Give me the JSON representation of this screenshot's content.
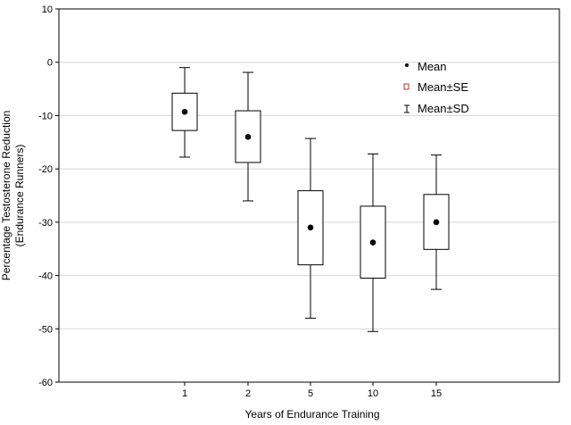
{
  "chart_data": {
    "type": "box",
    "categories": [
      "1",
      "2",
      "5",
      "10",
      "15"
    ],
    "mean": [
      -9.3,
      -14.0,
      -31.0,
      -33.8,
      -30.0
    ],
    "se_low": [
      -12.8,
      -18.8,
      -38.0,
      -40.5,
      -35.1
    ],
    "se_high": [
      -5.8,
      -9.1,
      -24.1,
      -27.0,
      -24.8
    ],
    "sd_low": [
      -17.8,
      -26.0,
      -48.0,
      -50.5,
      -42.6
    ],
    "sd_high": [
      -1.0,
      -1.9,
      -14.3,
      -17.2,
      -17.4
    ],
    "ylim": [
      -60,
      10
    ],
    "yticks": [
      10,
      0,
      -10,
      -20,
      -30,
      -40,
      -50,
      -60
    ],
    "xlabel": "Years of Endurance Training",
    "ylabel_line1": "Percentage Testosterone Reduction",
    "ylabel_line2": "(Endurance Runners)",
    "legend": {
      "mean": "Mean",
      "se": "Mean±SE",
      "sd": "Mean±SD",
      "placement": "top-right"
    },
    "grid": true,
    "colors": {
      "se_legend_marker": "#b23a2a",
      "gridline": "#d6d6d6"
    }
  }
}
